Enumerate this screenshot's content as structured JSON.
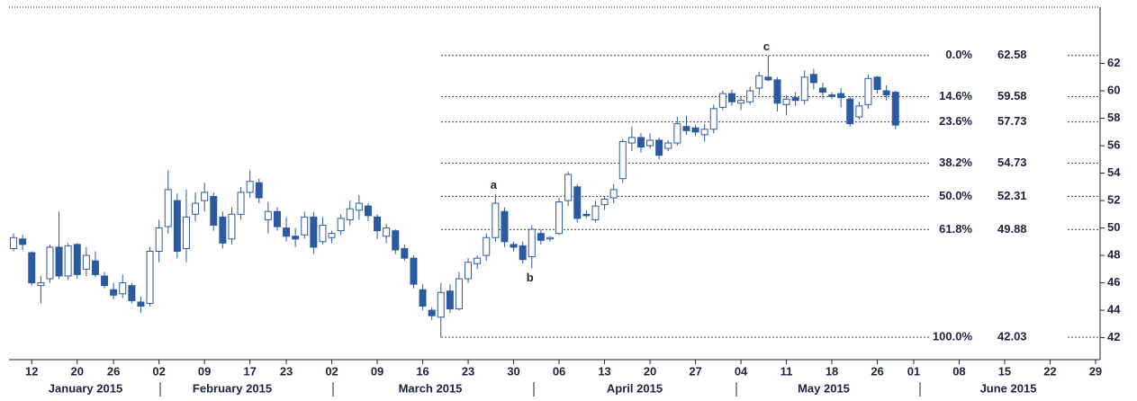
{
  "chart_data": {
    "type": "candlestick",
    "x": [
      -2,
      -1,
      0,
      1,
      2,
      3,
      4,
      5,
      6,
      7,
      8,
      9,
      10,
      11,
      12,
      13,
      14,
      15,
      16,
      17,
      18,
      19,
      20,
      21,
      22,
      23,
      24,
      25,
      26,
      27,
      28,
      29,
      30,
      31,
      32,
      33,
      34,
      35,
      36,
      37,
      38,
      39,
      40,
      41,
      42,
      43,
      44,
      45,
      46,
      47,
      48,
      49,
      50,
      51,
      52,
      53,
      54,
      55,
      56,
      57,
      58,
      59,
      60,
      61,
      62,
      63,
      64,
      65,
      66,
      67,
      68,
      69,
      70,
      71,
      72,
      73,
      74,
      75,
      76,
      77,
      78,
      79,
      80,
      81,
      82,
      83,
      84,
      85,
      86,
      87,
      88,
      89,
      90,
      91,
      92,
      93,
      94,
      95
    ],
    "open": [
      48.5,
      49.2,
      48.2,
      45.8,
      46.3,
      48.6,
      46.5,
      48.8,
      47.0,
      47.6,
      46.5,
      45.5,
      45.2,
      45.8,
      44.6,
      44.5,
      48.3,
      50.1,
      52.0,
      48.5,
      51.0,
      52.0,
      52.3,
      50.8,
      49.2,
      51.0,
      52.6,
      53.3,
      50.6,
      51.2,
      50.0,
      49.4,
      49.5,
      50.8,
      49.0,
      49.3,
      49.8,
      50.6,
      51.3,
      51.6,
      50.8,
      49.4,
      49.8,
      48.5,
      47.8,
      45.5,
      44.0,
      43.5,
      45.4,
      44.1,
      46.3,
      47.4,
      48.0,
      49.3,
      51.2,
      48.8,
      48.7,
      47.9,
      49.6,
      49.2,
      49.6,
      52.0,
      53.0,
      51.0,
      50.6,
      51.7,
      52.2,
      53.6,
      56.2,
      56.6,
      56.0,
      56.4,
      55.8,
      56.2,
      57.4,
      57.3,
      56.8,
      57.2,
      58.8,
      59.8,
      59.1,
      59.2,
      60.2,
      61.0,
      60.8,
      59.0,
      59.5,
      59.3,
      61.2,
      60.2,
      59.7,
      59.8,
      59.4,
      58.1,
      59.0,
      61.0,
      60.0,
      59.9
    ],
    "high": [
      49.6,
      49.5,
      48.3,
      46.5,
      48.8,
      51.2,
      48.9,
      48.9,
      48.6,
      48.3,
      46.8,
      46.0,
      46.6,
      46.0,
      45.0,
      48.6,
      50.6,
      54.2,
      52.5,
      52.8,
      52.6,
      53.3,
      52.6,
      51.2,
      51.5,
      53.0,
      54.2,
      53.6,
      51.9,
      51.5,
      50.8,
      50.0,
      51.2,
      51.2,
      50.8,
      49.8,
      51.0,
      52.0,
      52.4,
      51.8,
      51.0,
      50.3,
      49.9,
      48.8,
      48.0,
      45.9,
      44.2,
      46.0,
      45.9,
      46.8,
      47.8,
      48.0,
      49.6,
      52.48,
      51.5,
      49.0,
      49.0,
      50.2,
      49.9,
      49.4,
      52.2,
      54.1,
      53.2,
      51.3,
      52.0,
      52.3,
      53.2,
      56.5,
      57.4,
      56.9,
      56.9,
      56.6,
      56.4,
      58.1,
      58.2,
      57.5,
      57.6,
      59.0,
      60.0,
      60.1,
      59.6,
      60.3,
      61.4,
      62.58,
      61.0,
      59.7,
      59.9,
      61.5,
      61.6,
      60.6,
      59.9,
      60.2,
      59.6,
      59.2,
      61.2,
      61.1,
      60.4,
      60.0
    ],
    "low": [
      48.3,
      48.4,
      45.8,
      44.5,
      46.0,
      46.3,
      46.2,
      46.3,
      46.5,
      46.4,
      45.6,
      44.8,
      44.9,
      44.5,
      43.8,
      44.3,
      47.5,
      49.6,
      47.8,
      47.5,
      50.5,
      51.2,
      49.8,
      48.5,
      48.8,
      50.6,
      52.2,
      51.8,
      49.6,
      49.8,
      49.0,
      48.6,
      49.2,
      48.1,
      48.8,
      48.9,
      49.5,
      50.2,
      50.6,
      50.5,
      49.2,
      48.9,
      48.1,
      47.6,
      45.6,
      44.0,
      43.3,
      42.03,
      43.8,
      44.0,
      46.0,
      47.0,
      47.6,
      49.0,
      48.6,
      48.3,
      47.4,
      47.05,
      48.8,
      49.0,
      49.5,
      51.6,
      50.4,
      50.7,
      50.4,
      51.3,
      51.8,
      53.3,
      55.6,
      55.5,
      55.8,
      55.0,
      55.6,
      56.0,
      56.8,
      56.7,
      56.3,
      56.9,
      58.6,
      58.9,
      58.6,
      59.0,
      59.7,
      60.7,
      58.5,
      58.2,
      58.9,
      59.0,
      60.1,
      59.4,
      59.4,
      58.8,
      57.4,
      57.9,
      58.7,
      59.8,
      59.3,
      57.2
    ],
    "close": [
      49.3,
      48.8,
      46.0,
      46.0,
      48.6,
      46.5,
      48.7,
      46.6,
      48.0,
      46.6,
      45.8,
      45.1,
      46.0,
      44.7,
      44.3,
      48.3,
      50.0,
      52.8,
      48.3,
      50.8,
      51.8,
      52.6,
      50.2,
      48.9,
      51.0,
      52.6,
      53.4,
      52.2,
      51.2,
      50.1,
      49.4,
      49.2,
      50.8,
      48.6,
      50.2,
      49.6,
      50.7,
      51.4,
      51.8,
      50.9,
      49.8,
      50.0,
      48.4,
      47.8,
      45.9,
      44.3,
      43.6,
      45.3,
      44.1,
      46.3,
      47.5,
      47.8,
      49.3,
      51.8,
      49.0,
      48.6,
      47.7,
      49.9,
      49.1,
      49.3,
      51.9,
      53.9,
      50.7,
      50.9,
      51.6,
      52.1,
      52.8,
      56.3,
      56.6,
      55.9,
      56.4,
      55.3,
      56.2,
      57.6,
      57.1,
      57.0,
      57.2,
      58.7,
      59.8,
      59.2,
      59.3,
      60.0,
      61.1,
      60.8,
      59.1,
      59.4,
      59.3,
      61.0,
      60.6,
      59.9,
      59.6,
      59.5,
      57.6,
      58.9,
      60.9,
      60.1,
      59.7,
      57.5
    ],
    "up_color": "#ffffff",
    "down_color": "#2c5aa0",
    "edge_color": "#2c5aa0",
    "xlim": [
      -2.5,
      117.5
    ],
    "ylim": [
      40.4,
      66.1
    ],
    "yticks": [
      42,
      44,
      46,
      48,
      50,
      52,
      54,
      56,
      58,
      60,
      62
    ],
    "xticks": [
      {
        "value": 0,
        "label": "12"
      },
      {
        "value": 5,
        "label": "20"
      },
      {
        "value": 9,
        "label": "26"
      },
      {
        "value": 14,
        "label": "02"
      },
      {
        "value": 19,
        "label": "09"
      },
      {
        "value": 24,
        "label": "17"
      },
      {
        "value": 28,
        "label": "23"
      },
      {
        "value": 33,
        "label": "02"
      },
      {
        "value": 38,
        "label": "09"
      },
      {
        "value": 43,
        "label": "16"
      },
      {
        "value": 48,
        "label": "23"
      },
      {
        "value": 53,
        "label": "30"
      },
      {
        "value": 58,
        "label": "06"
      },
      {
        "value": 63,
        "label": "13"
      },
      {
        "value": 68,
        "label": "20"
      },
      {
        "value": 73,
        "label": "27"
      },
      {
        "value": 78,
        "label": "04"
      },
      {
        "value": 83,
        "label": "11"
      },
      {
        "value": 88,
        "label": "18"
      },
      {
        "value": 93,
        "label": "26"
      },
      {
        "value": 97,
        "label": "01"
      },
      {
        "value": 102,
        "label": "08"
      },
      {
        "value": 107,
        "label": "15"
      },
      {
        "value": 112,
        "label": "22"
      },
      {
        "value": 117,
        "label": "29"
      }
    ],
    "months": [
      "January 2015",
      "February 2015",
      "March 2015",
      "April 2015",
      "May 2015",
      "June 2015"
    ],
    "fib_levels": [
      {
        "ratio": "0.0%",
        "value": 62.58
      },
      {
        "ratio": "14.6%",
        "value": 59.58
      },
      {
        "ratio": "23.6%",
        "value": 57.73
      },
      {
        "ratio": "38.2%",
        "value": 54.73
      },
      {
        "ratio": "50.0%",
        "value": 52.31
      },
      {
        "ratio": "61.8%",
        "value": 49.88
      },
      {
        "ratio": "100.0%",
        "value": 42.03
      }
    ],
    "annotations": [
      {
        "text": "a",
        "x": 51,
        "position": "above"
      },
      {
        "text": "b",
        "x": 55,
        "position": "below"
      },
      {
        "text": "c",
        "x": 81,
        "position": "above"
      }
    ]
  }
}
